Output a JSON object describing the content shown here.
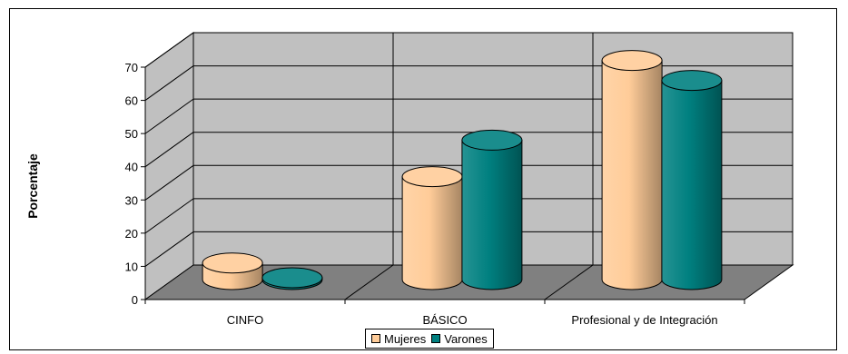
{
  "chart_data": {
    "type": "bar",
    "style": "3d-cylinder",
    "title": "",
    "xlabel": "",
    "ylabel": "Porcentaje",
    "ylim": [
      0,
      70
    ],
    "yticks": [
      0,
      10,
      20,
      30,
      40,
      50,
      60,
      70
    ],
    "grid": true,
    "categories": [
      "CINFO",
      "BÁSICO",
      "Profesional y de Integración"
    ],
    "series": [
      {
        "name": "Mujeres",
        "color": "#FFCC99",
        "values": [
          5,
          31,
          66
        ]
      },
      {
        "name": "Varones",
        "color": "#008080",
        "values": [
          0.5,
          42,
          60
        ]
      }
    ],
    "legend_position": "bottom",
    "wall_color": "#C0C0C0",
    "floor_color": "#808080"
  }
}
